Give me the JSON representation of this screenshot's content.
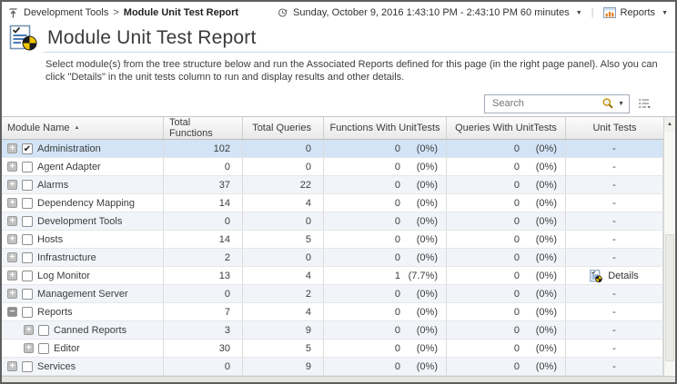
{
  "topbar": {
    "breadcrumb": {
      "parent": "Development Tools",
      "separator": ">",
      "current": "Module Unit Test Report"
    },
    "time_range": "Sunday, October 9, 2016 1:43:10 PM - 2:43:10 PM 60 minutes",
    "reports_label": "Reports"
  },
  "header": {
    "title": "Module Unit Test Report"
  },
  "description": "Select module(s) from the tree structure below and run the Associated Reports defined for this page (in the right page panel). Also you can click \"Details\" in the unit tests column to run and display results and other details.",
  "search": {
    "placeholder": "Search"
  },
  "table": {
    "columns": [
      "Module Name",
      "Total Functions",
      "Total Queries",
      "Functions With UnitTests",
      "Queries With UnitTests",
      "Unit Tests"
    ],
    "sort_column": "Module Name",
    "sort_direction": "asc",
    "rows": [
      {
        "name": "Administration",
        "level": 0,
        "expand": "plus",
        "checked": true,
        "selected": true,
        "total_functions": 102,
        "total_queries": 0,
        "func_ut": "0",
        "func_ut_pct": "(0%)",
        "query_ut": "0",
        "query_ut_pct": "(0%)",
        "unit_tests": {
          "type": "dash",
          "label": "-"
        }
      },
      {
        "name": "Agent Adapter",
        "level": 0,
        "expand": "plus",
        "checked": false,
        "selected": false,
        "total_functions": 0,
        "total_queries": 0,
        "func_ut": "0",
        "func_ut_pct": "(0%)",
        "query_ut": "0",
        "query_ut_pct": "(0%)",
        "unit_tests": {
          "type": "dash",
          "label": "-"
        }
      },
      {
        "name": "Alarms",
        "level": 0,
        "expand": "plus",
        "checked": false,
        "selected": false,
        "total_functions": 37,
        "total_queries": 22,
        "func_ut": "0",
        "func_ut_pct": "(0%)",
        "query_ut": "0",
        "query_ut_pct": "(0%)",
        "unit_tests": {
          "type": "dash",
          "label": "-"
        }
      },
      {
        "name": "Dependency Mapping",
        "level": 0,
        "expand": "plus",
        "checked": false,
        "selected": false,
        "total_functions": 14,
        "total_queries": 4,
        "func_ut": "0",
        "func_ut_pct": "(0%)",
        "query_ut": "0",
        "query_ut_pct": "(0%)",
        "unit_tests": {
          "type": "dash",
          "label": "-"
        }
      },
      {
        "name": "Development Tools",
        "level": 0,
        "expand": "plus",
        "checked": false,
        "selected": false,
        "total_functions": 0,
        "total_queries": 0,
        "func_ut": "0",
        "func_ut_pct": "(0%)",
        "query_ut": "0",
        "query_ut_pct": "(0%)",
        "unit_tests": {
          "type": "dash",
          "label": "-"
        }
      },
      {
        "name": "Hosts",
        "level": 0,
        "expand": "plus",
        "checked": false,
        "selected": false,
        "total_functions": 14,
        "total_queries": 5,
        "func_ut": "0",
        "func_ut_pct": "(0%)",
        "query_ut": "0",
        "query_ut_pct": "(0%)",
        "unit_tests": {
          "type": "dash",
          "label": "-"
        }
      },
      {
        "name": "Infrastructure",
        "level": 0,
        "expand": "plus",
        "checked": false,
        "selected": false,
        "total_functions": 2,
        "total_queries": 0,
        "func_ut": "0",
        "func_ut_pct": "(0%)",
        "query_ut": "0",
        "query_ut_pct": "(0%)",
        "unit_tests": {
          "type": "dash",
          "label": "-"
        }
      },
      {
        "name": "Log Monitor",
        "level": 0,
        "expand": "plus",
        "checked": false,
        "selected": false,
        "total_functions": 13,
        "total_queries": 4,
        "func_ut": "1",
        "func_ut_pct": "(7.7%)",
        "query_ut": "0",
        "query_ut_pct": "(0%)",
        "unit_tests": {
          "type": "details",
          "label": "Details"
        }
      },
      {
        "name": "Management Server",
        "level": 0,
        "expand": "plus",
        "checked": false,
        "selected": false,
        "total_functions": 0,
        "total_queries": 2,
        "func_ut": "0",
        "func_ut_pct": "(0%)",
        "query_ut": "0",
        "query_ut_pct": "(0%)",
        "unit_tests": {
          "type": "dash",
          "label": "-"
        }
      },
      {
        "name": "Reports",
        "level": 0,
        "expand": "minus",
        "checked": false,
        "selected": false,
        "total_functions": 7,
        "total_queries": 4,
        "func_ut": "0",
        "func_ut_pct": "(0%)",
        "query_ut": "0",
        "query_ut_pct": "(0%)",
        "unit_tests": {
          "type": "dash",
          "label": "-"
        }
      },
      {
        "name": "Canned Reports",
        "level": 1,
        "expand": "plus",
        "checked": false,
        "selected": false,
        "total_functions": 3,
        "total_queries": 9,
        "func_ut": "0",
        "func_ut_pct": "(0%)",
        "query_ut": "0",
        "query_ut_pct": "(0%)",
        "unit_tests": {
          "type": "dash",
          "label": "-"
        }
      },
      {
        "name": "Editor",
        "level": 1,
        "expand": "plus",
        "checked": false,
        "selected": false,
        "total_functions": 30,
        "total_queries": 5,
        "func_ut": "0",
        "func_ut_pct": "(0%)",
        "query_ut": "0",
        "query_ut_pct": "(0%)",
        "unit_tests": {
          "type": "dash",
          "label": "-"
        }
      },
      {
        "name": "Services",
        "level": 0,
        "expand": "plus",
        "checked": false,
        "selected": false,
        "total_functions": 0,
        "total_queries": 9,
        "func_ut": "0",
        "func_ut_pct": "(0%)",
        "query_ut": "0",
        "query_ut_pct": "(0%)",
        "unit_tests": {
          "type": "dash",
          "label": "-"
        }
      }
    ]
  },
  "icons": {
    "sort_ascending": "▲",
    "dropdown": "▼",
    "checkmark": "✔",
    "expand_plus": "+",
    "collapse_minus": "−",
    "scroll_up": "▲"
  },
  "colors": {
    "selected_row": "#d2e4f6",
    "stripe_row": "#f1f5fa",
    "pie_yellow": "#f2c500",
    "pie_black": "#1c1c1c",
    "chart_orange": "#e07f1f",
    "search_magnifier_gold": "#c79200",
    "window_border": "#5f5f5f"
  }
}
